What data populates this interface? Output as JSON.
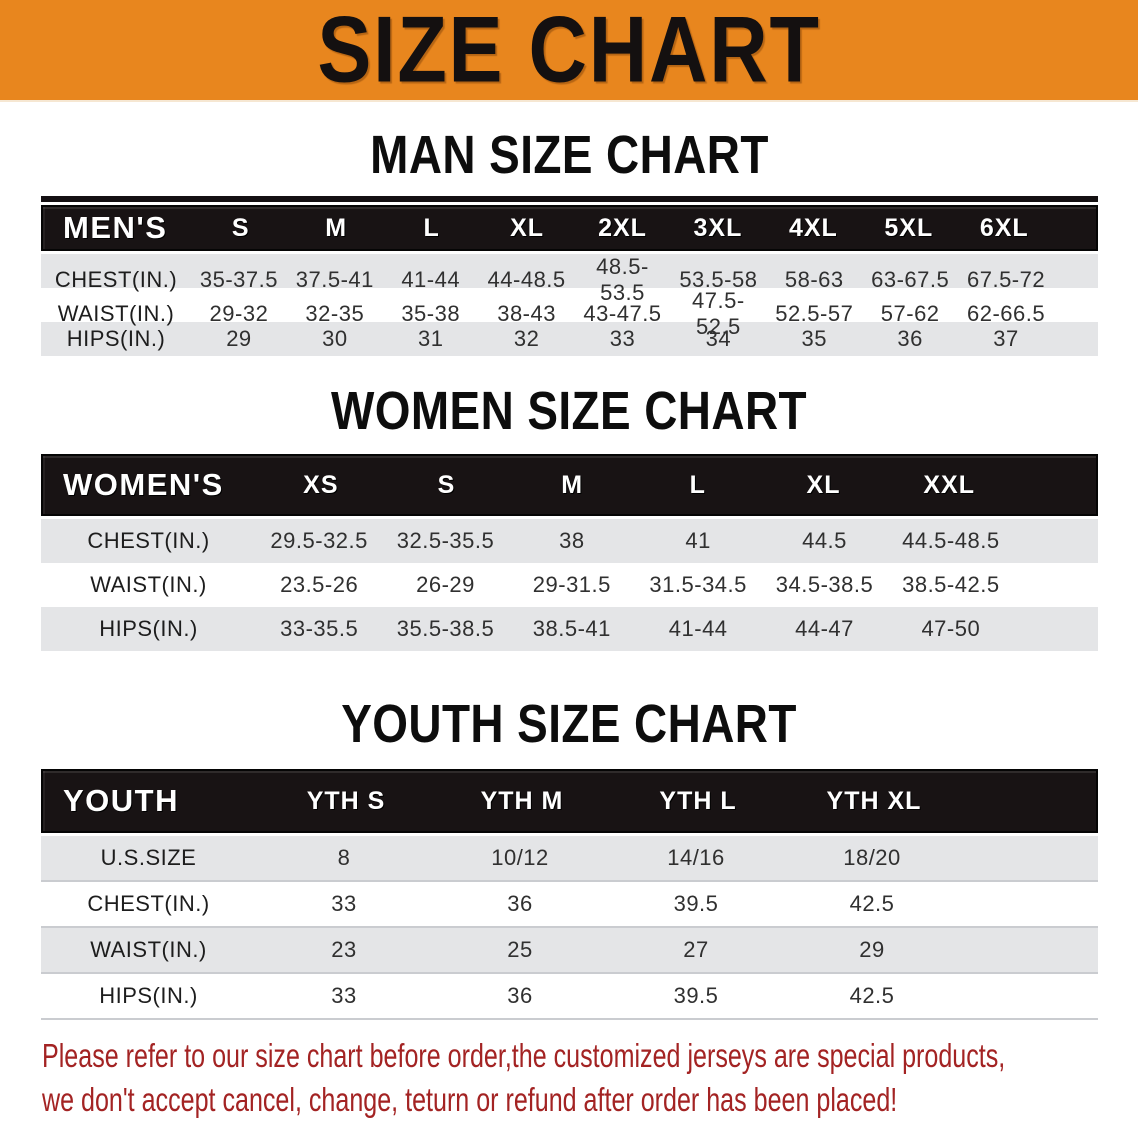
{
  "banner": {
    "title": "SIZE CHART"
  },
  "colors": {
    "banner_orange": "#E8861E",
    "table_header_black": "#181314",
    "row_gray": "#E4E5E7",
    "footer_red": "#A32323"
  },
  "sections": [
    {
      "title": "MAN SIZE CHART",
      "header_label": "MEN'S",
      "columns": [
        "S",
        "M",
        "L",
        "XL",
        "2XL",
        "3XL",
        "4XL",
        "5XL",
        "6XL"
      ],
      "rows": [
        {
          "label": "CHEST(IN.)",
          "values": [
            "35-37.5",
            "37.5-41",
            "41-44",
            "44-48.5",
            "48.5-53.5",
            "53.5-58",
            "58-63",
            "63-67.5",
            "67.5-72"
          ]
        },
        {
          "label": "WAIST(IN.)",
          "values": [
            "29-32",
            "32-35",
            "35-38",
            "38-43",
            "43-47.5",
            "47.5-52.5",
            "52.5-57",
            "57-62",
            "62-66.5"
          ]
        },
        {
          "label": "HIPS(IN.)",
          "values": [
            "29",
            "30",
            "31",
            "32",
            "33",
            "34",
            "35",
            "36",
            "37"
          ]
        }
      ]
    },
    {
      "title": "WOMEN SIZE CHART",
      "header_label": "WOMEN'S",
      "columns": [
        "XS",
        "S",
        "M",
        "L",
        "XL",
        "XXL"
      ],
      "rows": [
        {
          "label": "CHEST(IN.)",
          "values": [
            "29.5-32.5",
            "32.5-35.5",
            "38",
            "41",
            "44.5",
            "44.5-48.5"
          ]
        },
        {
          "label": "WAIST(IN.)",
          "values": [
            "23.5-26",
            "26-29",
            "29-31.5",
            "31.5-34.5",
            "34.5-38.5",
            "38.5-42.5"
          ]
        },
        {
          "label": "HIPS(IN.)",
          "values": [
            "33-35.5",
            "35.5-38.5",
            "38.5-41",
            "41-44",
            "44-47",
            "47-50"
          ]
        }
      ]
    },
    {
      "title": "YOUTH SIZE CHART",
      "header_label": "YOUTH",
      "columns": [
        "YTH S",
        "YTH M",
        "YTH L",
        "YTH XL"
      ],
      "rows": [
        {
          "label": "U.S.SIZE",
          "values": [
            "8",
            "10/12",
            "14/16",
            "18/20"
          ]
        },
        {
          "label": "CHEST(IN.)",
          "values": [
            "33",
            "36",
            "39.5",
            "42.5"
          ]
        },
        {
          "label": "WAIST(IN.)",
          "values": [
            "23",
            "25",
            "27",
            "29"
          ]
        },
        {
          "label": "HIPS(IN.)",
          "values": [
            "33",
            "36",
            "39.5",
            "42.5"
          ]
        }
      ]
    }
  ],
  "footer": {
    "line1": "Please refer to our size chart before order,the customized jerseys are special products,",
    "line2": "we don't accept cancel, change, teturn or refund after order has been placed!"
  }
}
